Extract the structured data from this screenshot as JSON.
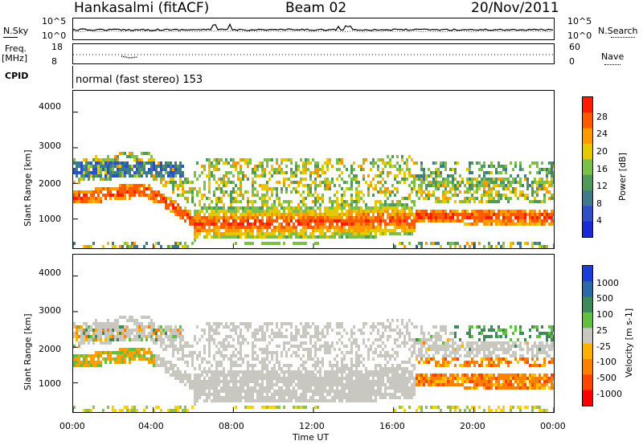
{
  "header": {
    "station": "Hankasalmi (fitACF)",
    "beam": "Beam 02",
    "date": "20/Nov/2011"
  },
  "noise_panel": {
    "left_label": "N.Sky",
    "right_label": "N.Search",
    "left_ticks": [
      "10^5",
      "10^0"
    ],
    "right_ticks": [
      "10^5",
      "10^0"
    ]
  },
  "freq_panel": {
    "left_label_1": "Freq.",
    "left_label_2": "[MHz]",
    "right_label": "Nave",
    "left_ticks": [
      "18",
      "8"
    ],
    "right_ticks": [
      "60",
      "0"
    ]
  },
  "cpid": {
    "label": "CPID",
    "mode": "normal (fast stereo) 153"
  },
  "colors": {
    "red": "#ff2a00",
    "orange": "#ff8c00",
    "yellow": "#ffc800",
    "green": "#5cb85c",
    "blue": "#1a3fd6",
    "grey": "#c8c8c0"
  },
  "chart_data": [
    {
      "type": "heatmap",
      "name": "power",
      "ylabel": "Slant Range [km]",
      "xlabel": "Time UT",
      "x_ticks": [
        "00:00",
        "04:00",
        "08:00",
        "12:00",
        "16:00",
        "20:00",
        "00:00"
      ],
      "y_ticks": [
        "1000",
        "2000",
        "3000",
        "4000"
      ],
      "xlim_hours": [
        0,
        24
      ],
      "ylim_km": [
        180,
        4600
      ],
      "colorbar": {
        "label": "Power [dB]",
        "ticks": [
          "4",
          "8",
          "12",
          "16",
          "20",
          "24",
          "28"
        ],
        "colors": [
          "#1a2bd6",
          "#2e50c4",
          "#3d7a8a",
          "#4f9a5a",
          "#7cc04a",
          "#e6c800",
          "#ff9900",
          "#ff5a00",
          "#ff1a00"
        ]
      }
    },
    {
      "type": "heatmap",
      "name": "velocity",
      "ylabel": "Slant Range [km]",
      "xlabel": "Time UT",
      "x_ticks": [
        "00:00",
        "04:00",
        "08:00",
        "12:00",
        "16:00",
        "20:00",
        "00:00"
      ],
      "y_ticks": [
        "1000",
        "2000",
        "3000",
        "4000"
      ],
      "xlim_hours": [
        0,
        24
      ],
      "ylim_km": [
        180,
        4600
      ],
      "colorbar": {
        "label": "Velocity [m s-1]",
        "ticks": [
          "1000",
          "500",
          "100",
          "25",
          "-25",
          "-100",
          "-500",
          "-1000"
        ],
        "colors": [
          "#1a3fd6",
          "#2a6aa8",
          "#3e8a5a",
          "#60c040",
          "#c8c8c0",
          "#ffb000",
          "#ff8000",
          "#ff4400",
          "#ff0000"
        ]
      }
    }
  ]
}
